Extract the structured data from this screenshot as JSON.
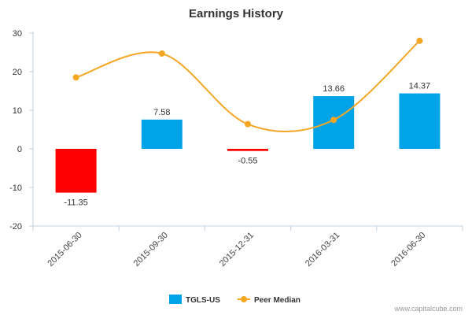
{
  "chart_data": {
    "type": "bar",
    "title": "Earnings History",
    "categories": [
      "2015-06-30",
      "2015-09-30",
      "2015-12-31",
      "2016-03-31",
      "2016-06-30"
    ],
    "ylim": [
      -20,
      30
    ],
    "yticks": [
      -20,
      -10,
      0,
      10,
      20,
      30
    ],
    "grid": false,
    "legend_position": "bottom-center",
    "series": [
      {
        "name": "TGLS-US",
        "type": "bar",
        "values": [
          -11.35,
          7.58,
          -0.55,
          13.66,
          14.37
        ],
        "data_labels": [
          "-11.35",
          "7.58",
          "-0.55",
          "13.66",
          "14.37"
        ],
        "positive_color": "#00a2e8",
        "negative_color": "#ff0000"
      },
      {
        "name": "Peer Median",
        "type": "line",
        "values": [
          18.5,
          24.7,
          6.4,
          7.5,
          28.0
        ],
        "color": "#f5a623"
      }
    ]
  },
  "credit": "www.capitalcube.com"
}
